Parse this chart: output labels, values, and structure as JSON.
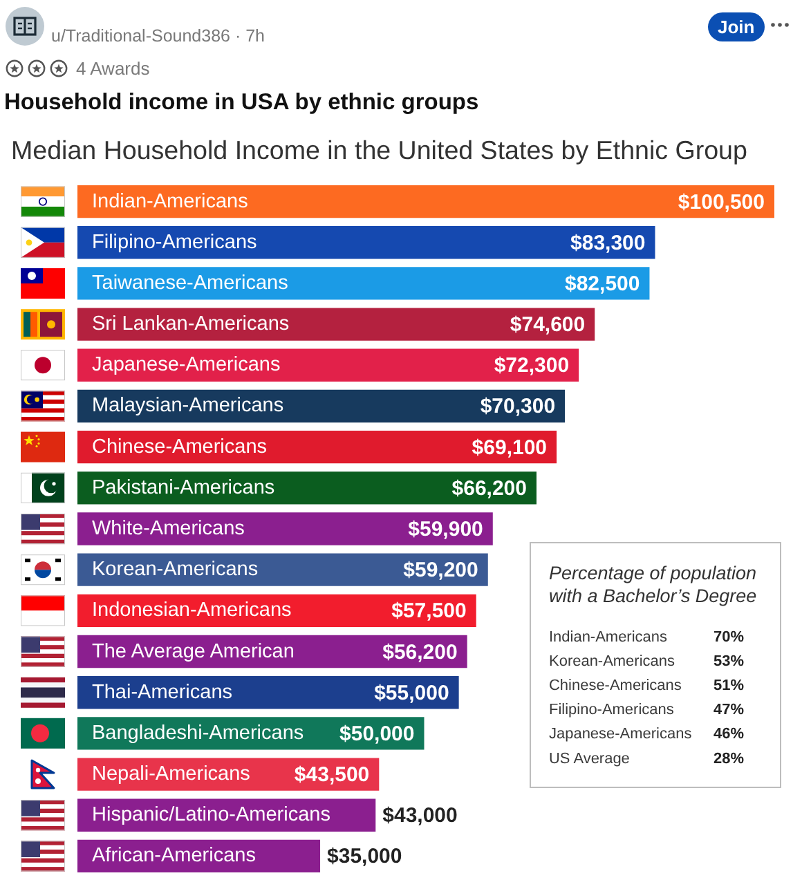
{
  "chart_data": [
    {
      "type": "bar",
      "orientation": "horizontal",
      "title": "Median Household Income in the United States by Ethnic Group",
      "annotations": [
        "u/Traditional-Sound386 · 7h",
        "4 Awards",
        "Household income in USA by ethnic groups",
        "Join"
      ],
      "categories": [
        "Indian-Americans",
        "Filipino-Americans",
        "Taiwanese-Americans",
        "Sri Lankan-Americans",
        "Japanese-Americans",
        "Malaysian-Americans",
        "Chinese-Americans",
        "Pakistani-Americans",
        "White-Americans",
        "Korean-Americans",
        "Indonesian-Americans",
        "The Average American",
        "Thai-Americans",
        "Bangladeshi-Americans",
        "Nepali-Americans",
        "Hispanic/Latino-Americans",
        "African-Americans"
      ],
      "values": [
        100500,
        83300,
        82500,
        74600,
        72300,
        70300,
        69100,
        66200,
        59900,
        59200,
        57500,
        56200,
        55000,
        50000,
        43500,
        43000,
        35000
      ],
      "value_labels": [
        "$100,500",
        "$83,300",
        "$82,500",
        "$74,600",
        "$72,300",
        "$70,300",
        "$69,100",
        "$66,200",
        "$59,900",
        "$59,200",
        "$57,500",
        "$56,200",
        "$55,000",
        "$50,000",
        "$43,500",
        "$43,000",
        "$35,000"
      ],
      "colors": [
        "#fd6a21",
        "#1549b0",
        "#1b9be6",
        "#b4213f",
        "#e2214a",
        "#173a5e",
        "#e01b2d",
        "#0b5d1f",
        "#8b1f8f",
        "#3b5a94",
        "#f21d2d",
        "#8b1f8f",
        "#1c3f8e",
        "#10785a",
        "#e8344b",
        "#8b1f8f",
        "#8b1f8f"
      ],
      "xlim": [
        0,
        100500
      ],
      "tick_labels": "y"
    },
    {
      "type": "other",
      "title": "Percentage of population with a Bachelor’s Degree",
      "categories": [
        "Indian-Americans",
        "Korean-Americans",
        "Chinese-Americans",
        "Filipino-Americans",
        "Japanese-Americans",
        "US Average"
      ],
      "value_labels": [
        "70%",
        "53%",
        "51%",
        "47%",
        "46%",
        "28%"
      ]
    }
  ]
}
